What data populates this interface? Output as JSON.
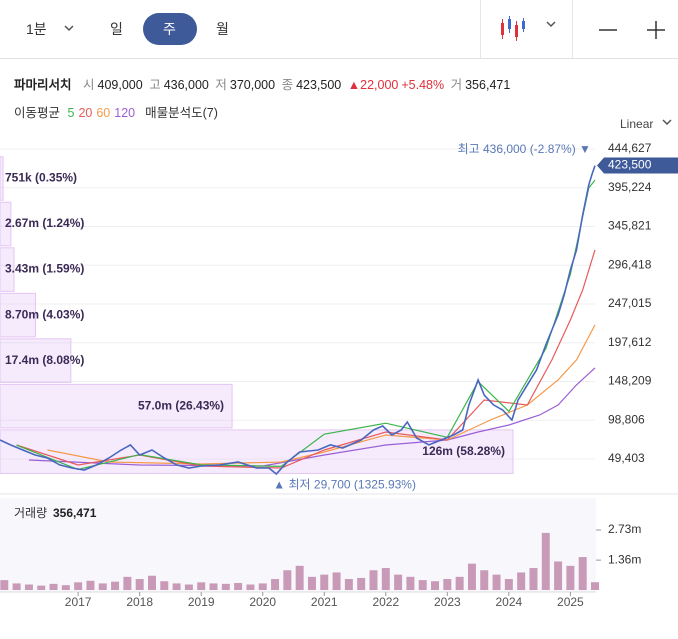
{
  "toolbar": {
    "intervals": [
      "1분",
      "일",
      "주",
      "월"
    ],
    "selected": 2
  },
  "info": {
    "name": "파마리서치",
    "open_label": "시",
    "open": "409,000",
    "high_label": "고",
    "high": "436,000",
    "low_label": "저",
    "low": "370,000",
    "close_label": "종",
    "close": "423,500",
    "change": "▲22,000",
    "change_pct": "+5.48%",
    "volume_label": "거",
    "volume": "356,471"
  },
  "ma_legend": {
    "title": "이동평균",
    "periods": [
      "5",
      "20",
      "60",
      "120"
    ],
    "profile": "매물분석도(7)"
  },
  "scale_mode": "Linear",
  "chart_data": [
    {
      "type": "line",
      "xlim": [
        2015.73,
        2025.4
      ],
      "ylim": [
        22600,
        449700
      ],
      "yticks": [
        {
          "value": 49403,
          "label": "49,403"
        },
        {
          "value": 98806,
          "label": "98,806"
        },
        {
          "value": 148209,
          "label": "148,209"
        },
        {
          "value": 197612,
          "label": "197,612"
        },
        {
          "value": 247015,
          "label": "247,015"
        },
        {
          "value": 296418,
          "label": "296,418"
        },
        {
          "value": 345821,
          "label": "345,821"
        },
        {
          "value": 395224,
          "label": "395,224"
        },
        {
          "value": 444627,
          "label": "444,627"
        }
      ],
      "grid": true,
      "series": [
        {
          "name": "price",
          "color": "#4a67c0",
          "x": [
            2015.73,
            2015.9,
            2016.1,
            2016.3,
            2016.5,
            2016.7,
            2016.9,
            2017.1,
            2017.3,
            2017.5,
            2017.7,
            2017.85,
            2018.0,
            2018.2,
            2018.4,
            2018.6,
            2018.8,
            2019.0,
            2019.3,
            2019.6,
            2019.9,
            2020.1,
            2020.22,
            2020.4,
            2020.6,
            2020.9,
            2021.1,
            2021.3,
            2021.6,
            2021.8,
            2021.95,
            2022.1,
            2022.25,
            2022.35,
            2022.5,
            2022.7,
            2022.9,
            2023.1,
            2023.25,
            2023.35,
            2023.5,
            2023.6,
            2023.75,
            2023.9,
            2024.05,
            2024.15,
            2024.3,
            2024.45,
            2024.6,
            2024.7,
            2024.8,
            2024.9,
            2025.0,
            2025.1,
            2025.2,
            2025.3,
            2025.35,
            2025.4
          ],
          "values": [
            73600,
            67300,
            60900,
            54500,
            50700,
            41800,
            37900,
            35400,
            41800,
            50700,
            60900,
            67300,
            54500,
            60900,
            50700,
            41800,
            37900,
            40500,
            41800,
            45600,
            37900,
            37900,
            30300,
            45600,
            58300,
            60900,
            67300,
            63400,
            73600,
            86400,
            91500,
            80000,
            86400,
            96600,
            76200,
            67300,
            73600,
            80000,
            86400,
            118300,
            150200,
            131000,
            118300,
            111900,
            99100,
            124700,
            143800,
            162900,
            194800,
            213900,
            233100,
            258600,
            290500,
            316000,
            360600,
            398900,
            412000,
            423500
          ]
        },
        {
          "name": "5",
          "color": "#3cb44b",
          "x": [
            2016.0,
            2017.0,
            2018.0,
            2019.0,
            2020.3,
            2021.0,
            2022.0,
            2023.0,
            2023.5,
            2024.0,
            2024.6,
            2025.0,
            2025.3,
            2025.4
          ],
          "values": [
            67000,
            36000,
            55000,
            42000,
            40000,
            81000,
            95000,
            77000,
            148000,
            110000,
            190000,
            285000,
            395000,
            405000
          ]
        },
        {
          "name": "20",
          "color": "#e85a5a",
          "x": [
            2016.0,
            2017.0,
            2018.0,
            2019.0,
            2020.3,
            2021.0,
            2022.0,
            2023.0,
            2023.6,
            2024.3,
            2024.7,
            2025.0,
            2025.2,
            2025.4
          ],
          "values": [
            67260,
            41751,
            54505,
            40475,
            37925,
            60882,
            83839,
            73636,
            124651,
            118274,
            175667,
            226683,
            264947,
            315961
          ]
        },
        {
          "name": "60",
          "color": "#f59a4a",
          "x": [
            2016.5,
            2017.5,
            2019.0,
            2020.3,
            2021.0,
            2022.0,
            2023.0,
            2023.7,
            2024.3,
            2024.8,
            2025.1,
            2025.4
          ],
          "values": [
            60882,
            45577,
            43026,
            45577,
            58331,
            80013,
            73636,
            99143,
            118274,
            150159,
            175667,
            220300
          ]
        },
        {
          "name": "120",
          "color": "#9b5fd6",
          "x": [
            2016.2,
            2018.0,
            2020.0,
            2021.0,
            2022.0,
            2023.0,
            2023.5,
            2024.0,
            2024.5,
            2024.8,
            2025.1,
            2025.4
          ],
          "values": [
            48128,
            41751,
            40475,
            54505,
            67260,
            73636,
            83839,
            92767,
            105521,
            118274,
            143782,
            165464
          ]
        }
      ],
      "profile": {
        "low": 29700,
        "high": 436000,
        "rows": [
          {
            "volume": 126000000,
            "label": "126m (58.28%)"
          },
          {
            "volume": 57000000,
            "label": "57.0m (26.43%)"
          },
          {
            "volume": 17400000,
            "label": "17.4m (8.08%)"
          },
          {
            "volume": 8700000,
            "label": "8.70m (4.03%)"
          },
          {
            "volume": 3430000,
            "label": "3.43m (1.59%)"
          },
          {
            "volume": 2670000,
            "label": "2.67m (1.24%)"
          },
          {
            "volume": 751000,
            "label": "751k (0.35%)"
          }
        ]
      },
      "high_marker": {
        "x": 2025.35,
        "value": 436000,
        "label": "최고 436,000 (-2.87%) ▼"
      },
      "low_marker": {
        "x": 2020.22,
        "value": 29700,
        "label": "▲ 최저 29,700 (1325.93%)"
      },
      "last_price": {
        "value": 423500,
        "label": "423,500"
      }
    },
    {
      "type": "bar",
      "title": "거래량",
      "last_value": "356,471",
      "xlim": [
        2015.73,
        2025.4
      ],
      "xticks": [
        {
          "value": 2017,
          "label": "2017"
        },
        {
          "value": 2018,
          "label": "2018"
        },
        {
          "value": 2019,
          "label": "2019"
        },
        {
          "value": 2020,
          "label": "2020"
        },
        {
          "value": 2021,
          "label": "2021"
        },
        {
          "value": 2022,
          "label": "2022"
        },
        {
          "value": 2023,
          "label": "2023"
        },
        {
          "value": 2024,
          "label": "2024"
        },
        {
          "value": 2025,
          "label": "2025"
        }
      ],
      "ylim": [
        0,
        3870000
      ],
      "yticks": [
        {
          "value": 1360000,
          "label": "1.36m"
        },
        {
          "value": 2730000,
          "label": "2.73m"
        }
      ],
      "color": "#c99ab8",
      "x": [
        2015.8,
        2016.0,
        2016.2,
        2016.4,
        2016.6,
        2016.8,
        2017.0,
        2017.2,
        2017.4,
        2017.6,
        2017.8,
        2018.0,
        2018.2,
        2018.4,
        2018.6,
        2018.8,
        2019.0,
        2019.2,
        2019.4,
        2019.6,
        2019.8,
        2020.0,
        2020.2,
        2020.4,
        2020.6,
        2020.8,
        2021.0,
        2021.2,
        2021.4,
        2021.6,
        2021.8,
        2022.0,
        2022.2,
        2022.4,
        2022.6,
        2022.8,
        2023.0,
        2023.2,
        2023.4,
        2023.6,
        2023.8,
        2024.0,
        2024.2,
        2024.4,
        2024.6,
        2024.8,
        2025.0,
        2025.2,
        2025.4
      ],
      "values": [
        450000,
        300000,
        250000,
        200000,
        280000,
        220000,
        350000,
        420000,
        300000,
        380000,
        600000,
        500000,
        650000,
        400000,
        300000,
        250000,
        350000,
        300000,
        280000,
        320000,
        250000,
        300000,
        500000,
        900000,
        1100000,
        600000,
        700000,
        800000,
        500000,
        550000,
        900000,
        1000000,
        700000,
        600000,
        450000,
        400000,
        500000,
        600000,
        1200000,
        900000,
        700000,
        500000,
        800000,
        1000000,
        2600000,
        1300000,
        1100000,
        1500000,
        356471
      ]
    }
  ]
}
